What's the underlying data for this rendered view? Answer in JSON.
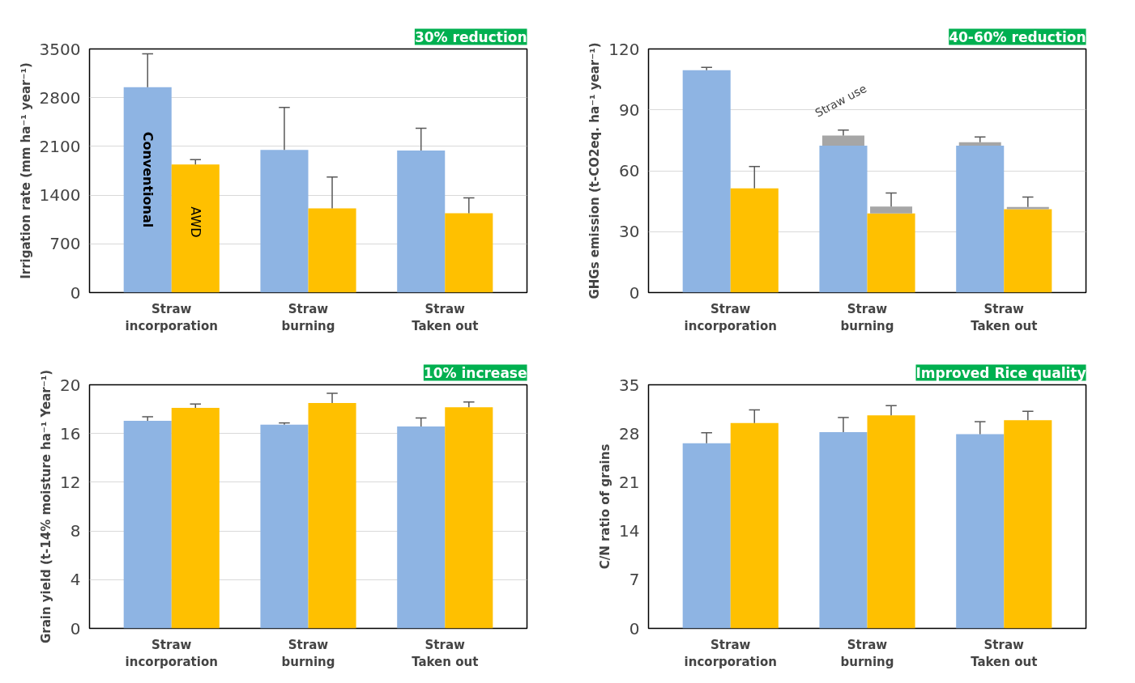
{
  "chart_data": [
    {
      "type": "bar",
      "ylabel": "Irrigation rate (mm ha⁻¹ year⁻¹)",
      "categories": [
        "Straw incorporation",
        "Straw burning",
        "Straw Taken out"
      ],
      "ylim": [
        0,
        3500
      ],
      "yticks": [
        0,
        700,
        1400,
        2100,
        2800,
        3500
      ],
      "grid": "y",
      "annotations": [
        "30% reduction"
      ],
      "series": [
        {
          "name": "Conventional",
          "color": "#8eb4e3",
          "values": [
            2950,
            2050,
            2040
          ],
          "errors": [
            [
              2950,
              3430
            ],
            [
              2050,
              2660
            ],
            [
              2040,
              2360
            ]
          ]
        },
        {
          "name": "AWD",
          "color": "#ffc000",
          "values": [
            1840,
            1210,
            1140
          ],
          "errors": [
            [
              1840,
              1910
            ],
            [
              1210,
              1660
            ],
            [
              1140,
              1360
            ]
          ]
        }
      ]
    },
    {
      "type": "bar",
      "ylabel": "GHGs emission (t-CO2eq. ha⁻¹ year⁻¹)",
      "categories": [
        "Straw incorporation",
        "Straw burning",
        "Straw Taken out"
      ],
      "ylim": [
        0,
        120
      ],
      "yticks": [
        0,
        30,
        60,
        90,
        120
      ],
      "grid": "y",
      "annotations": [
        "40-60% reduction"
      ],
      "series": [
        {
          "color": "#8eb4e3",
          "values": [
            109.5,
            72.4,
            72.4
          ],
          "errors": [
            [
              109.5,
              110.9
            ],
            [
              77.3,
              80.0
            ],
            [
              74.1,
              76.6
            ]
          ]
        },
        {
          "color": "#ffc000",
          "values": [
            51.3,
            39.0,
            41.1
          ],
          "errors": [
            [
              51.3,
              62.1
            ],
            [
              42.4,
              49.0
            ],
            [
              42.2,
              47.0
            ]
          ]
        },
        {
          "name": "Straw use",
          "color": "#a6a6a6",
          "values": [
            null,
            4.9,
            1.7
          ],
          "base": [
            null,
            72.4,
            72.4
          ]
        },
        {
          "color": "#a6a6a6",
          "values": [
            null,
            3.4,
            1.1
          ],
          "base": [
            null,
            39.0,
            41.1
          ]
        }
      ]
    },
    {
      "type": "bar",
      "ylabel": "Grain yield (t-14% moisture ha⁻¹ Year⁻¹)",
      "categories": [
        "Straw incorporation",
        "Straw burning",
        "Straw Taken out"
      ],
      "ylim": [
        0,
        20
      ],
      "yticks": [
        0,
        4,
        8,
        12,
        16,
        20
      ],
      "grid": "y",
      "annotations": [
        "10% increase"
      ],
      "series": [
        {
          "color": "#8eb4e3",
          "values": [
            17.05,
            16.73,
            16.57
          ],
          "errors": [
            [
              17.05,
              17.37
            ],
            [
              16.73,
              16.87
            ],
            [
              16.57,
              17.28
            ]
          ]
        },
        {
          "color": "#ffc000",
          "values": [
            18.11,
            18.51,
            18.16
          ],
          "errors": [
            [
              18.11,
              18.43
            ],
            [
              18.51,
              19.31
            ],
            [
              18.16,
              18.59
            ]
          ]
        }
      ]
    },
    {
      "type": "bar",
      "ylabel": "C/N ratio of grains",
      "categories": [
        "Straw incorporation",
        "Straw burning",
        "Straw Taken out"
      ],
      "ylim": [
        0,
        35
      ],
      "yticks": [
        0,
        7,
        14,
        21,
        28,
        35
      ],
      "annotations": [
        "Improved Rice quality"
      ],
      "series": [
        {
          "color": "#8eb4e3",
          "values": [
            26.6,
            28.2,
            27.9
          ],
          "errors": [
            [
              26.6,
              28.1
            ],
            [
              28.2,
              30.3
            ],
            [
              27.9,
              29.7
            ]
          ]
        },
        {
          "color": "#ffc000",
          "values": [
            29.5,
            30.6,
            29.9
          ],
          "errors": [
            [
              29.5,
              31.4
            ],
            [
              30.6,
              32.0
            ],
            [
              29.9,
              31.2
            ]
          ]
        }
      ]
    }
  ]
}
